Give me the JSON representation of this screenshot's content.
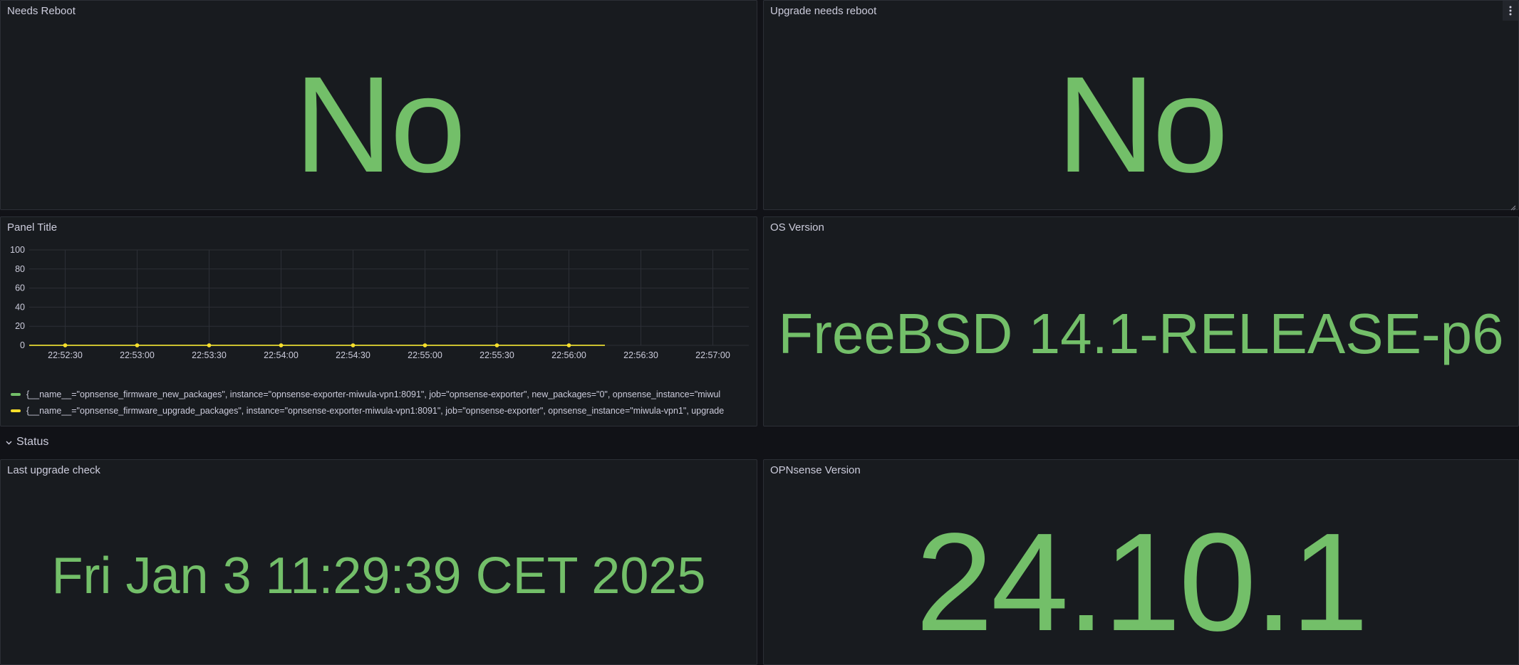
{
  "colors": {
    "background": "#111217",
    "panel": "#181b1f",
    "stat_green": "#73bf69",
    "series_green": "#73bf69",
    "series_yellow": "#fade2a"
  },
  "panels": {
    "needs_reboot": {
      "title": "Needs Reboot",
      "value": "No"
    },
    "upgrade_needs_reboot": {
      "title": "Upgrade needs reboot",
      "value": "No",
      "menu_icon": "more-vertical-icon"
    },
    "panel_title": {
      "title": "Panel Title",
      "legend": [
        "{__name__=\"opnsense_firmware_new_packages\", instance=\"opnsense-exporter-miwula-vpn1:8091\", job=\"opnsense-exporter\", new_packages=\"0\", opnsense_instance=\"miwul",
        "{__name__=\"opnsense_firmware_upgrade_packages\", instance=\"opnsense-exporter-miwula-vpn1:8091\", job=\"opnsense-exporter\", opnsense_instance=\"miwula-vpn1\", upgrade"
      ]
    },
    "os_version": {
      "title": "OS Version",
      "value": "FreeBSD 14.1-RELEASE-p6"
    },
    "last_upgrade_check": {
      "title": "Last upgrade check",
      "value": "Fri Jan 3 11:29:39 CET 2025"
    },
    "opnsense_version": {
      "title": "OPNsense Version",
      "value": "24.10.1"
    }
  },
  "row": {
    "label": "Status",
    "icon": "chevron-down-icon"
  },
  "chart_data": {
    "type": "line",
    "title": "Panel Title",
    "ylim": [
      0,
      100
    ],
    "yticks": [
      "100",
      "80",
      "60",
      "40",
      "20",
      "0"
    ],
    "ytick_values": [
      100,
      80,
      60,
      40,
      20,
      0
    ],
    "xticks": [
      "22:52:30",
      "22:53:00",
      "22:53:30",
      "22:54:00",
      "22:54:30",
      "22:55:00",
      "22:55:30",
      "22:56:00",
      "22:56:30",
      "22:57:00"
    ],
    "x_range": [
      "22:52:15",
      "22:57:15"
    ],
    "grid": true,
    "legend_placement": "bottom",
    "series": [
      {
        "color": "#73bf69",
        "x": [
          "22:52:15",
          "22:52:30",
          "22:52:45",
          "22:53:00",
          "22:53:15",
          "22:53:30",
          "22:53:45",
          "22:54:00",
          "22:54:15",
          "22:54:30",
          "22:54:45",
          "22:55:00",
          "22:55:15",
          "22:55:30",
          "22:55:45",
          "22:56:00",
          "22:56:15"
        ],
        "values": [
          0,
          0,
          0,
          0,
          0,
          0,
          0,
          0,
          0,
          0,
          0,
          0,
          0,
          0,
          0,
          0,
          0
        ]
      },
      {
        "color": "#fade2a",
        "x": [
          "22:52:15",
          "22:52:30",
          "22:52:45",
          "22:53:00",
          "22:53:15",
          "22:53:30",
          "22:53:45",
          "22:54:00",
          "22:54:15",
          "22:54:30",
          "22:54:45",
          "22:55:00",
          "22:55:15",
          "22:55:30",
          "22:55:45",
          "22:56:00",
          "22:56:15"
        ],
        "values": [
          0,
          0,
          0,
          0,
          0,
          0,
          0,
          0,
          0,
          0,
          0,
          0,
          0,
          0,
          0,
          0,
          0
        ]
      }
    ]
  }
}
